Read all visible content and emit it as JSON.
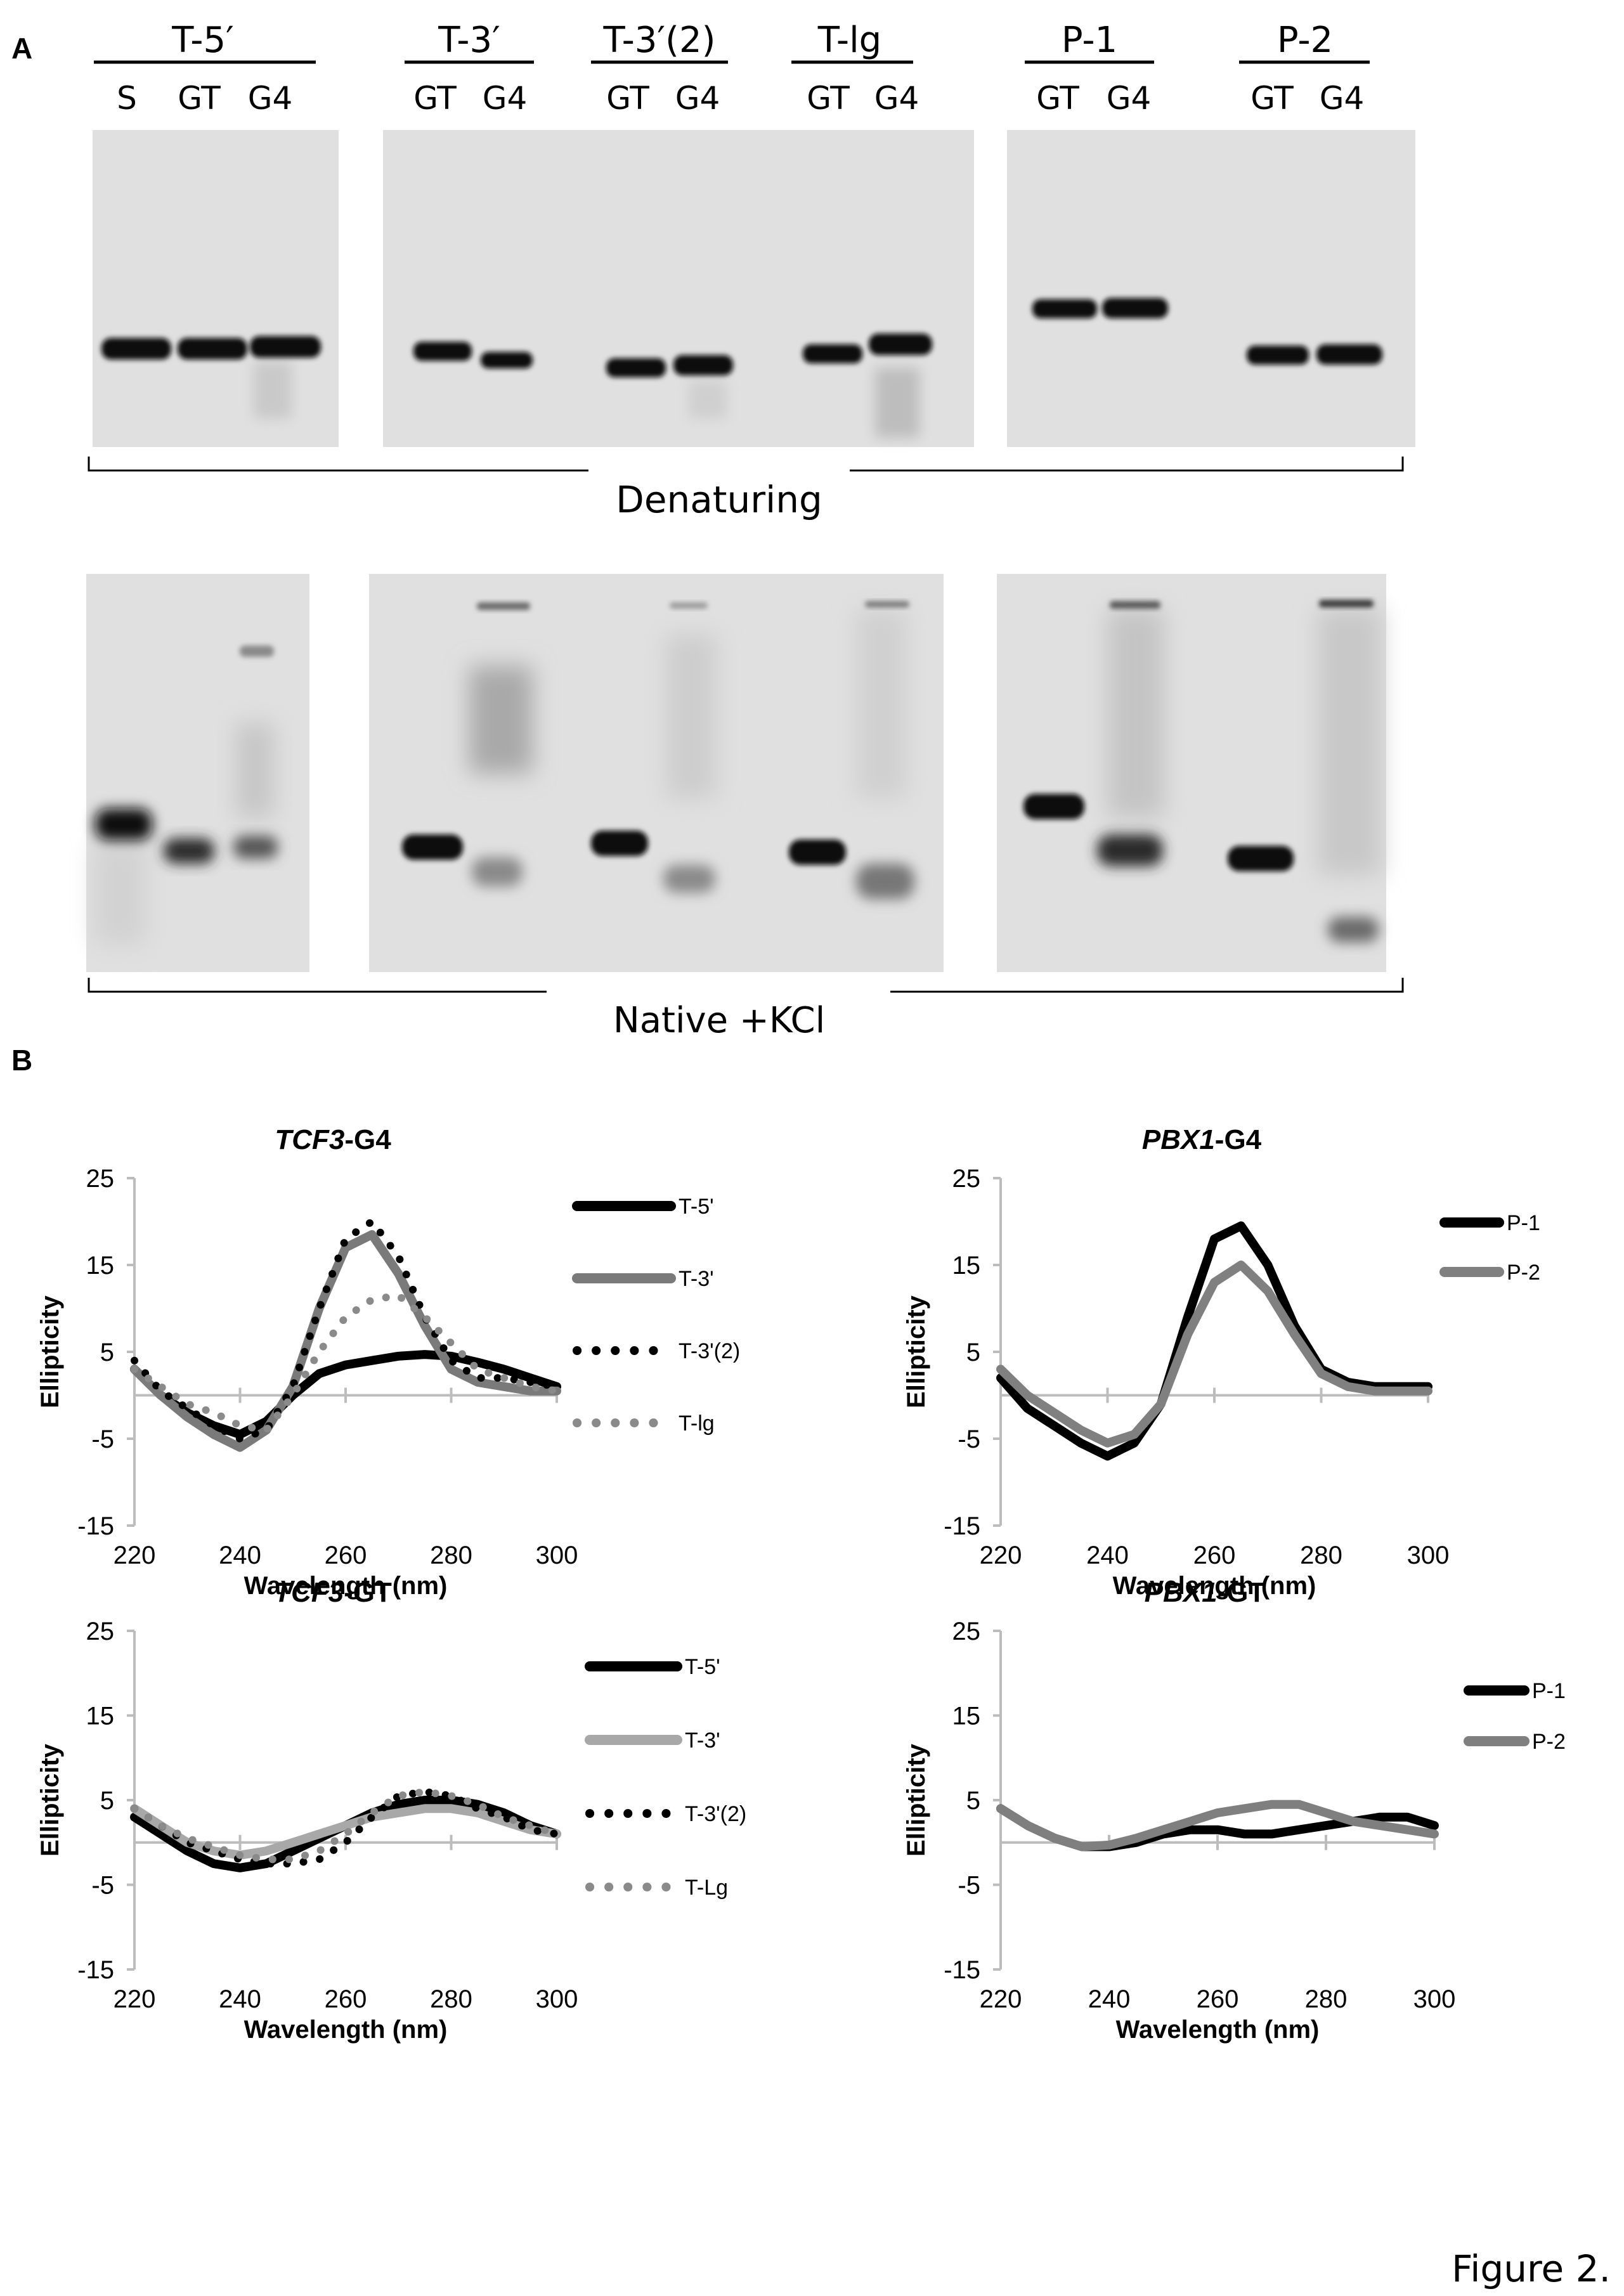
{
  "panel_a": {
    "label": "A",
    "groups": [
      {
        "name": "T-5′",
        "lanes": [
          "S",
          "GT",
          "G4"
        ]
      },
      {
        "name": "T-3′",
        "lanes": [
          "GT",
          "G4"
        ]
      },
      {
        "name": "T-3′(2)",
        "lanes": [
          "GT",
          "G4"
        ]
      },
      {
        "name": "T-lg",
        "lanes": [
          "GT",
          "G4"
        ]
      },
      {
        "name": "P-1",
        "lanes": [
          "GT",
          "G4"
        ]
      },
      {
        "name": "P-2",
        "lanes": [
          "GT",
          "G4"
        ]
      }
    ],
    "denaturing_label": "Denaturing",
    "native_label": "Native +KCl",
    "colors": {
      "gel_background": "#e0e0e0",
      "band": "#0a0a0a"
    }
  },
  "panel_b": {
    "label": "B"
  },
  "figure_caption": "Figure 2.",
  "chart_data": [
    {
      "type": "line",
      "title_italic": "TCF3",
      "title_rest": "-G4",
      "xlabel": "Wavelength (nm)",
      "ylabel": "Ellipticity",
      "xlim": [
        220,
        300
      ],
      "ylim": [
        -15,
        25
      ],
      "xticks": [
        220,
        240,
        260,
        280,
        300
      ],
      "yticks": [
        25,
        15,
        5,
        -5,
        -15
      ],
      "legend_position": "right",
      "series": [
        {
          "name": "T-5'",
          "color": "#000000",
          "style": "solid",
          "x": [
            220,
            225,
            230,
            235,
            240,
            245,
            250,
            255,
            260,
            265,
            270,
            275,
            280,
            285,
            290,
            295,
            300
          ],
          "y": [
            3,
            0,
            -2,
            -3.5,
            -4.5,
            -3,
            0,
            2.5,
            3.5,
            4,
            4.5,
            4.7,
            4.5,
            3.8,
            3,
            2,
            1
          ]
        },
        {
          "name": "T-3'",
          "color": "#7a7a7a",
          "style": "solid",
          "x": [
            220,
            225,
            230,
            235,
            240,
            245,
            250,
            255,
            260,
            265,
            270,
            275,
            280,
            285,
            290,
            295,
            300
          ],
          "y": [
            3,
            0,
            -2.5,
            -4.5,
            -6,
            -4,
            1,
            10,
            17,
            18.5,
            14,
            8,
            3,
            1.5,
            1,
            0.5,
            0.5
          ]
        },
        {
          "name": "T-3'(2)",
          "color": "#000000",
          "style": "dotted",
          "x": [
            220,
            225,
            230,
            235,
            240,
            245,
            250,
            255,
            260,
            265,
            270,
            275,
            280,
            285,
            290,
            295,
            300
          ],
          "y": [
            4,
            0.5,
            -1.5,
            -3.5,
            -5,
            -4,
            1,
            10,
            18,
            20,
            16,
            9,
            4,
            2,
            2,
            1.5,
            1
          ]
        },
        {
          "name": "T-lg",
          "color": "#8a8a8a",
          "style": "dotted",
          "x": [
            220,
            225,
            230,
            235,
            240,
            245,
            250,
            255,
            260,
            265,
            270,
            275,
            280,
            285,
            290,
            295,
            300
          ],
          "y": [
            3,
            1,
            -1,
            -2,
            -3.5,
            -4,
            0,
            5,
            9,
            11,
            11.5,
            9,
            6,
            3,
            2,
            1,
            0.5
          ]
        }
      ]
    },
    {
      "type": "line",
      "title_italic": "PBX1",
      "title_rest": "-G4",
      "xlabel": "Wavelength (nm)",
      "ylabel": "Ellipticity",
      "xlim": [
        220,
        300
      ],
      "ylim": [
        -15,
        25
      ],
      "xticks": [
        220,
        240,
        260,
        280,
        300
      ],
      "yticks": [
        25,
        15,
        5,
        -5,
        -15
      ],
      "legend_position": "top-right",
      "series": [
        {
          "name": "P-1",
          "color": "#000000",
          "style": "solid",
          "x": [
            220,
            225,
            230,
            235,
            240,
            245,
            250,
            255,
            260,
            265,
            270,
            275,
            280,
            285,
            290,
            295,
            300
          ],
          "y": [
            2,
            -1.5,
            -3.5,
            -5.5,
            -7,
            -5.5,
            -1,
            9,
            18,
            19.5,
            15,
            8,
            3,
            1.5,
            1,
            1,
            1
          ]
        },
        {
          "name": "P-2",
          "color": "#808080",
          "style": "solid",
          "x": [
            220,
            225,
            230,
            235,
            240,
            245,
            250,
            255,
            260,
            265,
            270,
            275,
            280,
            285,
            290,
            295,
            300
          ],
          "y": [
            3,
            0,
            -2,
            -4,
            -5.5,
            -4.5,
            -1,
            7,
            13,
            15,
            12,
            7,
            2.5,
            1,
            0.5,
            0.5,
            0.5
          ]
        }
      ]
    },
    {
      "type": "line",
      "title_italic": "TCF3",
      "title_rest": "-GT",
      "xlabel": "Wavelength (nm)",
      "ylabel": "Ellipticity",
      "xlim": [
        220,
        300
      ],
      "ylim": [
        -15,
        25
      ],
      "xticks": [
        220,
        240,
        260,
        280,
        300
      ],
      "yticks": [
        25,
        15,
        5,
        -5,
        -15
      ],
      "legend_position": "right",
      "series": [
        {
          "name": "T-5'",
          "color": "#000000",
          "style": "solid",
          "x": [
            220,
            225,
            230,
            235,
            240,
            245,
            250,
            255,
            260,
            265,
            270,
            275,
            280,
            285,
            290,
            295,
            300
          ],
          "y": [
            3,
            1,
            -1,
            -2.5,
            -3,
            -2.5,
            -1,
            0.5,
            2,
            3.5,
            4.5,
            5,
            5,
            4.5,
            3.5,
            2,
            1
          ]
        },
        {
          "name": "T-3'",
          "color": "#a8a8a8",
          "style": "solid",
          "x": [
            220,
            225,
            230,
            235,
            240,
            245,
            250,
            255,
            260,
            265,
            270,
            275,
            280,
            285,
            290,
            295,
            300
          ],
          "y": [
            4,
            2,
            0,
            -1,
            -1.5,
            -1,
            0,
            1,
            2,
            3,
            3.5,
            4,
            4,
            3.5,
            2.5,
            1.5,
            1
          ]
        },
        {
          "name": "T-3'(2)",
          "color": "#000000",
          "style": "dotted",
          "x": [
            220,
            225,
            230,
            235,
            240,
            245,
            250,
            255,
            260,
            265,
            270,
            275,
            280,
            285,
            290,
            295,
            300
          ],
          "y": [
            4,
            2,
            0,
            -1,
            -2,
            -2.5,
            -2.5,
            -2,
            0,
            3,
            5.5,
            6,
            5.5,
            4,
            3,
            1.5,
            1
          ]
        },
        {
          "name": "T-Lg",
          "color": "#8a8a8a",
          "style": "dotted",
          "x": [
            220,
            225,
            230,
            235,
            240,
            245,
            250,
            255,
            260,
            265,
            270,
            275,
            280,
            285,
            290,
            295,
            300
          ],
          "y": [
            4,
            2,
            0.5,
            -0.5,
            -1.5,
            -2,
            -2,
            -1,
            1,
            3.5,
            5.5,
            6,
            5.5,
            4.5,
            3,
            2,
            1
          ]
        }
      ]
    },
    {
      "type": "line",
      "title_italic": "PBX1",
      "title_rest": "-GT",
      "xlabel": "Wavelength (nm)",
      "ylabel": "Ellipticity",
      "xlim": [
        220,
        300
      ],
      "ylim": [
        -15,
        25
      ],
      "xticks": [
        220,
        240,
        260,
        280,
        300
      ],
      "yticks": [
        25,
        15,
        5,
        -5,
        -15
      ],
      "legend_position": "top-right",
      "series": [
        {
          "name": "P-1",
          "color": "#000000",
          "style": "solid",
          "x": [
            220,
            225,
            230,
            235,
            240,
            245,
            250,
            255,
            260,
            265,
            270,
            275,
            280,
            285,
            290,
            295,
            300
          ],
          "y": [
            4,
            2,
            0.5,
            -0.5,
            -0.5,
            0,
            1,
            1.5,
            1.5,
            1,
            1,
            1.5,
            2,
            2.5,
            3,
            3,
            2
          ]
        },
        {
          "name": "P-2",
          "color": "#7f7f7f",
          "style": "solid",
          "x": [
            220,
            225,
            230,
            235,
            240,
            245,
            250,
            255,
            260,
            265,
            270,
            275,
            280,
            285,
            290,
            295,
            300
          ],
          "y": [
            4,
            2,
            0.5,
            -0.5,
            -0.3,
            0.5,
            1.5,
            2.5,
            3.5,
            4,
            4.5,
            4.5,
            3.5,
            2.5,
            2,
            1.5,
            1
          ]
        }
      ]
    }
  ]
}
